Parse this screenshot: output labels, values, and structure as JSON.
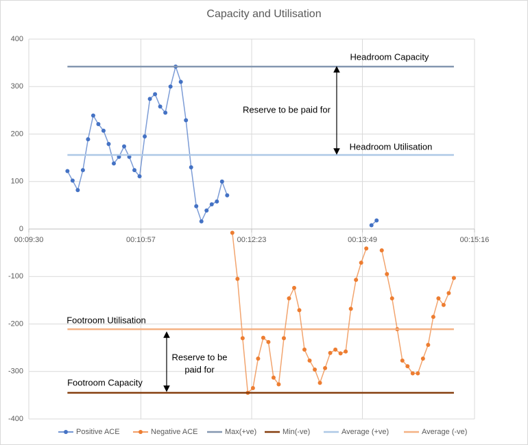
{
  "chart_data": {
    "type": "scatter",
    "title": "Capacity and Utilisation",
    "x": [
      600,
      604,
      608,
      612,
      616,
      620,
      624,
      628,
      632,
      636,
      640,
      644,
      648,
      652,
      656,
      660,
      664,
      668,
      672,
      676,
      680,
      684,
      688,
      692,
      696,
      700,
      704,
      708,
      712,
      716,
      720,
      724,
      728,
      732,
      736,
      740,
      744,
      748,
      752,
      756,
      760,
      764,
      768,
      772,
      776,
      780,
      784,
      788,
      792,
      796,
      800,
      804,
      808,
      812,
      816,
      820,
      824,
      828,
      832,
      836,
      840,
      844,
      848,
      852,
      856,
      860,
      864,
      868,
      872,
      876,
      880,
      884,
      888,
      892,
      896,
      900
    ],
    "xlim": [
      570,
      916
    ],
    "xticks": [
      {
        "value": 570,
        "label": "00:09:30"
      },
      {
        "value": 657,
        "label": "00:10:57"
      },
      {
        "value": 743,
        "label": "00:12:23"
      },
      {
        "value": 829,
        "label": "00:13:49"
      },
      {
        "value": 916,
        "label": "00:15:16"
      }
    ],
    "ylim": [
      -400,
      400
    ],
    "yticks": [
      -400,
      -300,
      -200,
      -100,
      0,
      100,
      200,
      300,
      400
    ],
    "grid": true,
    "legend": "bottom",
    "series": [
      {
        "name": "Positive ACE",
        "color": "#4472c4",
        "values": [
          122,
          102,
          82,
          124,
          189,
          239,
          221,
          207,
          179,
          138,
          152,
          174,
          152,
          124,
          111,
          195,
          274,
          284,
          258,
          245,
          300,
          342,
          310,
          229,
          130,
          48,
          16,
          39,
          52,
          58,
          100,
          71,
          null,
          null,
          null,
          null,
          null,
          null,
          null,
          null,
          null,
          null,
          null,
          null,
          null,
          null,
          null,
          null,
          null,
          null,
          null,
          null,
          null,
          null,
          null,
          null,
          null,
          null,
          null,
          8,
          18,
          null,
          null,
          null,
          null,
          null,
          null,
          null,
          null,
          null,
          null,
          null,
          null,
          null,
          null,
          null
        ]
      },
      {
        "name": "Negative ACE",
        "color": "#ed7d31",
        "values": [
          null,
          null,
          null,
          null,
          null,
          null,
          null,
          null,
          null,
          null,
          null,
          null,
          null,
          null,
          null,
          null,
          null,
          null,
          null,
          null,
          null,
          null,
          null,
          null,
          null,
          null,
          null,
          null,
          null,
          null,
          null,
          null,
          -8,
          -105,
          -230,
          -345,
          -335,
          -273,
          -229,
          -238,
          -313,
          -327,
          -230,
          -146,
          -124,
          -171,
          -254,
          -277,
          -296,
          -324,
          -293,
          -261,
          -254,
          -262,
          -258,
          -168,
          -107,
          -71,
          -41,
          null,
          null,
          -45,
          -95,
          -146,
          -211,
          -277,
          -289,
          -304,
          -304,
          -273,
          -244,
          -185,
          -146,
          -160,
          -135,
          -103
        ]
      },
      {
        "name": "Max(+ve)",
        "color": "#8497b0",
        "value": 342
      },
      {
        "name": "Min(-ve)",
        "color": "#843c0c",
        "value": -345
      },
      {
        "name": "Average (+ve)",
        "color": "#adc8e6",
        "value": 156
      },
      {
        "name": "Average (-ve)",
        "color": "#f4b183",
        "value": -211
      }
    ],
    "annotations": [
      {
        "lines": [
          "Headroom Capacity"
        ]
      },
      {
        "lines": [
          "Reserve to be paid for"
        ]
      },
      {
        "lines": [
          "Headroom Utilisation"
        ]
      },
      {
        "lines": [
          "Footroom Utilisation"
        ]
      },
      {
        "lines": [
          "Reserve to be",
          "paid for"
        ]
      },
      {
        "lines": [
          "Footroom Capacity"
        ]
      }
    ]
  }
}
